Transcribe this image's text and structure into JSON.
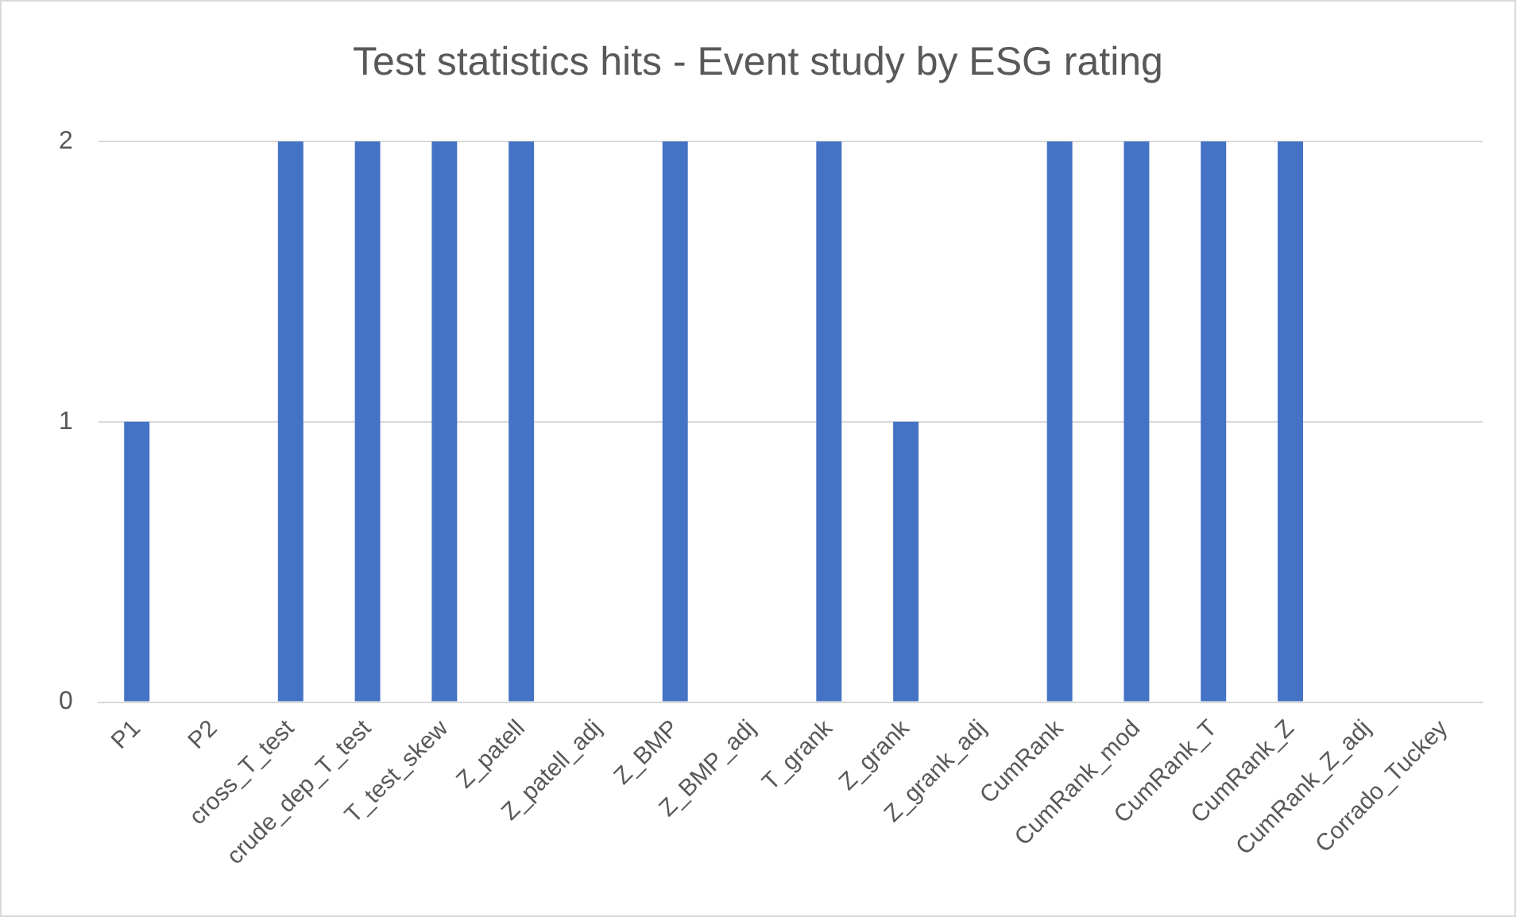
{
  "chart_data": {
    "type": "bar",
    "title": "Test statistics hits - Event study by ESG rating",
    "categories": [
      "P1",
      "P2",
      "cross_T_test",
      "crude_dep_T_test",
      "T_test_skew",
      "Z_patell",
      "Z_patell_adj",
      "Z_BMP",
      "Z_BMP_adj",
      "T_grank",
      "Z_grank",
      "Z_grank_adj",
      "CumRank",
      "CumRank_mod",
      "CumRank_T",
      "CumRank_Z",
      "CumRank_Z_adj",
      "Corrado_Tuckey"
    ],
    "values": [
      1,
      0,
      2,
      2,
      2,
      2,
      0,
      2,
      0,
      2,
      1,
      0,
      2,
      2,
      2,
      2,
      0,
      0
    ],
    "color": "#4472c4",
    "ylim": [
      0,
      2
    ],
    "yticks": [
      0,
      1,
      2
    ],
    "grid": "y",
    "legend": false
  }
}
